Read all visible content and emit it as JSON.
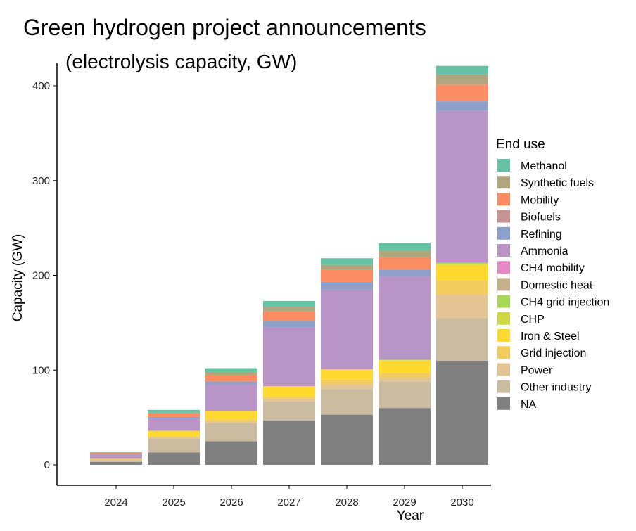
{
  "chart_data": {
    "type": "bar",
    "stacked": true,
    "title": "Green hydrogen project announcements",
    "subtitle": "(electrolysis capacity, GW)",
    "xlabel": "Year",
    "ylabel": "Capacity (GW)",
    "ylim": [
      0,
      430
    ],
    "yticks": [
      "0",
      "100",
      "200",
      "300",
      "400"
    ],
    "grid": false,
    "legend_title": "End use",
    "legend_position": "right",
    "categories": [
      "2024",
      "2025",
      "2026",
      "2027",
      "2028",
      "2029",
      "2030"
    ],
    "series": [
      {
        "name": "Methanol",
        "color": "#66c2a5",
        "values": [
          0.5,
          3,
          4,
          6,
          7,
          8,
          9
        ]
      },
      {
        "name": "Synthetic fuels",
        "color": "#b1a580",
        "values": [
          0.2,
          0.5,
          3,
          5,
          5,
          7,
          11
        ]
      },
      {
        "name": "Mobility",
        "color": "#fc8d62",
        "values": [
          1.5,
          4,
          7,
          10,
          13,
          13,
          17
        ]
      },
      {
        "name": "Biofuels",
        "color": "#c79393",
        "values": [
          0,
          0,
          0,
          0,
          0,
          0,
          0.5
        ]
      },
      {
        "name": "Refining",
        "color": "#8da0cb",
        "values": [
          0.3,
          1.5,
          3,
          7,
          8,
          7,
          10
        ]
      },
      {
        "name": "Ammonia",
        "color": "#b994c6",
        "values": [
          4,
          13,
          28,
          62,
          84,
          88,
          160
        ]
      },
      {
        "name": "CH4 mobility",
        "color": "#e78ac3",
        "values": [
          0,
          0,
          0,
          0,
          0,
          0,
          0.5
        ]
      },
      {
        "name": "Domestic heat",
        "color": "#c4b08a",
        "values": [
          0,
          0,
          0,
          0,
          0,
          0,
          0
        ]
      },
      {
        "name": "CH4 grid injection",
        "color": "#a6d854",
        "values": [
          0,
          0,
          0,
          0,
          0,
          0.5,
          1
        ]
      },
      {
        "name": "CHP",
        "color": "#cfd843",
        "values": [
          0,
          0,
          0,
          0,
          0,
          0.5,
          1
        ]
      },
      {
        "name": "Iron & Steel",
        "color": "#ffd92f",
        "values": [
          0.5,
          5.5,
          9,
          11,
          11,
          13,
          16
        ]
      },
      {
        "name": "Grid injection",
        "color": "#f2cc5c",
        "values": [
          0.5,
          1.5,
          2,
          2,
          5,
          5,
          15
        ]
      },
      {
        "name": "Power",
        "color": "#e5c494",
        "values": [
          1,
          1,
          2,
          3,
          5,
          4,
          25
        ]
      },
      {
        "name": "Other industry",
        "color": "#cbbba0",
        "values": [
          2,
          15,
          19,
          20,
          27,
          28,
          45
        ]
      },
      {
        "name": "NA",
        "color": "#808080",
        "values": [
          3,
          13,
          25,
          47,
          53,
          60,
          110
        ]
      }
    ]
  }
}
